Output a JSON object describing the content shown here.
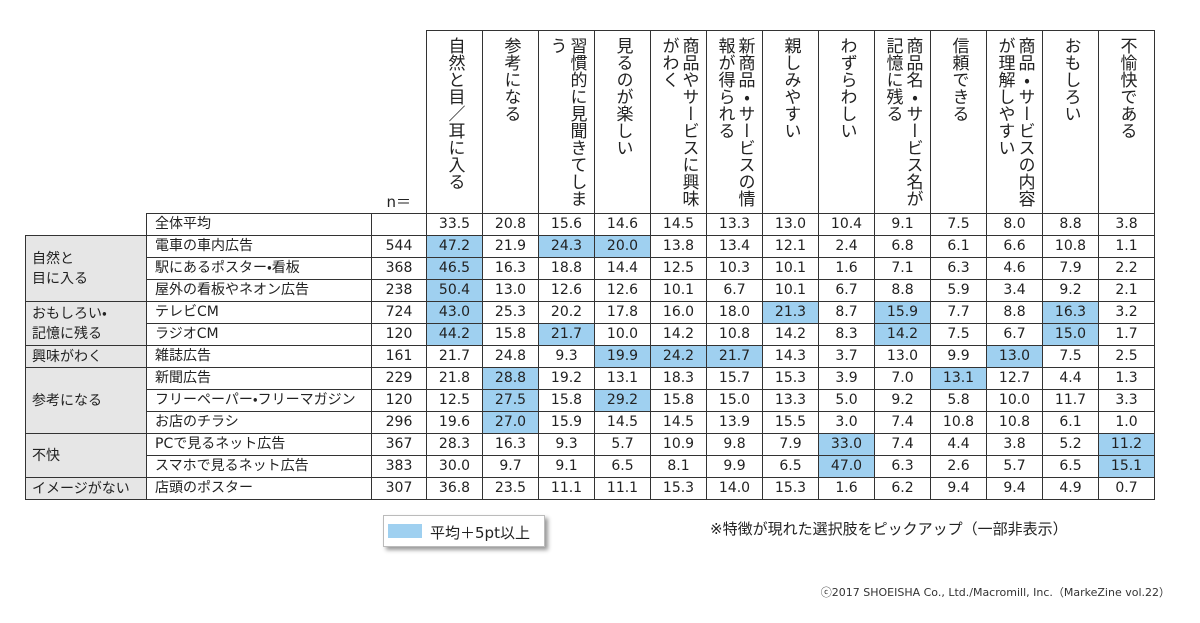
{
  "table": {
    "n_label": "n＝",
    "columns": [
      "自然と目／耳に入る",
      "参考になる",
      "習慣的に見聞きてしまう",
      "見るのが楽しい",
      "商品やサービスに興味がわく",
      "新商品・サービスの情報が得られる",
      "親しみやすい",
      "わずらわしい",
      "商品名・サービス名が記憶に残る",
      "信頼できる",
      "商品・サービスの内容が理解しやすい",
      "おもしろい",
      "不愉快である"
    ],
    "overall": {
      "label": "全体平均",
      "values": [
        "33.5",
        "20.8",
        "15.6",
        "14.6",
        "14.5",
        "13.3",
        "13.0",
        "10.4",
        "9.1",
        "7.5",
        "8.0",
        "8.8",
        "3.8"
      ]
    },
    "highlight_color": "#9fd0f0",
    "groups": [
      {
        "label": "自然と\n目に入る",
        "rows": [
          {
            "label": "電車の車内広告",
            "n": "544",
            "values": [
              "47.2",
              "21.9",
              "24.3",
              "20.0",
              "13.8",
              "13.4",
              "12.1",
              "2.4",
              "6.8",
              "6.1",
              "6.6",
              "10.8",
              "1.1"
            ],
            "highlight": [
              0,
              2,
              3
            ]
          },
          {
            "label": "駅にあるポスター・看板",
            "n": "368",
            "values": [
              "46.5",
              "16.3",
              "18.8",
              "14.4",
              "12.5",
              "10.3",
              "10.1",
              "1.6",
              "7.1",
              "6.3",
              "4.6",
              "7.9",
              "2.2"
            ],
            "highlight": [
              0
            ]
          },
          {
            "label": "屋外の看板やネオン広告",
            "n": "238",
            "values": [
              "50.4",
              "13.0",
              "12.6",
              "12.6",
              "10.1",
              "6.7",
              "10.1",
              "6.7",
              "8.8",
              "5.9",
              "3.4",
              "9.2",
              "2.1"
            ],
            "highlight": [
              0
            ]
          }
        ]
      },
      {
        "label": "おもしろい・\n記憶に残る",
        "rows": [
          {
            "label": "テレビCM",
            "n": "724",
            "values": [
              "43.0",
              "25.3",
              "20.2",
              "17.8",
              "16.0",
              "18.0",
              "21.3",
              "8.7",
              "15.9",
              "7.7",
              "8.8",
              "16.3",
              "3.2"
            ],
            "highlight": [
              0,
              6,
              8,
              11
            ]
          },
          {
            "label": "ラジオCM",
            "n": "120",
            "values": [
              "44.2",
              "15.8",
              "21.7",
              "10.0",
              "14.2",
              "10.8",
              "14.2",
              "8.3",
              "14.2",
              "7.5",
              "6.7",
              "15.0",
              "1.7"
            ],
            "highlight": [
              0,
              2,
              8,
              11
            ]
          }
        ]
      },
      {
        "label": "興味がわく",
        "rows": [
          {
            "label": "雑誌広告",
            "n": "161",
            "values": [
              "21.7",
              "24.8",
              "9.3",
              "19.9",
              "24.2",
              "21.7",
              "14.3",
              "3.7",
              "13.0",
              "9.9",
              "13.0",
              "7.5",
              "2.5"
            ],
            "highlight": [
              3,
              4,
              5,
              10
            ]
          }
        ]
      },
      {
        "label": "参考になる",
        "rows": [
          {
            "label": "新聞広告",
            "n": "229",
            "values": [
              "21.8",
              "28.8",
              "19.2",
              "13.1",
              "18.3",
              "15.7",
              "15.3",
              "3.9",
              "7.0",
              "13.1",
              "12.7",
              "4.4",
              "1.3"
            ],
            "highlight": [
              1,
              9
            ]
          },
          {
            "label": "フリーペーパー・フリーマガジン",
            "n": "120",
            "values": [
              "12.5",
              "27.5",
              "15.8",
              "29.2",
              "15.8",
              "15.0",
              "13.3",
              "5.0",
              "9.2",
              "5.8",
              "10.0",
              "11.7",
              "3.3"
            ],
            "highlight": [
              1,
              3
            ]
          },
          {
            "label": "お店のチラシ",
            "n": "296",
            "values": [
              "19.6",
              "27.0",
              "15.9",
              "14.5",
              "14.5",
              "13.9",
              "15.5",
              "3.0",
              "7.4",
              "10.8",
              "10.8",
              "6.1",
              "1.0"
            ],
            "highlight": [
              1
            ]
          }
        ]
      },
      {
        "label": "不快",
        "rows": [
          {
            "label": "PCで見るネット広告",
            "n": "367",
            "values": [
              "28.3",
              "16.3",
              "9.3",
              "5.7",
              "10.9",
              "9.8",
              "7.9",
              "33.0",
              "7.4",
              "4.4",
              "3.8",
              "5.2",
              "11.2"
            ],
            "highlight": [
              7,
              12
            ]
          },
          {
            "label": "スマホで見るネット広告",
            "n": "383",
            "values": [
              "30.0",
              "9.7",
              "9.1",
              "6.5",
              "8.1",
              "9.9",
              "6.5",
              "47.0",
              "6.3",
              "2.6",
              "5.7",
              "6.5",
              "15.1"
            ],
            "highlight": [
              7,
              12
            ]
          }
        ]
      },
      {
        "label": "イメージがない",
        "rows": [
          {
            "label": "店頭のポスター",
            "n": "307",
            "values": [
              "36.8",
              "23.5",
              "11.1",
              "11.1",
              "15.3",
              "14.0",
              "15.3",
              "1.6",
              "6.2",
              "9.4",
              "9.4",
              "4.9",
              "0.7"
            ],
            "highlight": []
          }
        ]
      }
    ]
  },
  "legend": {
    "label": "平均＋5pt以上"
  },
  "note": "※特徴が現れた選択肢をピックアップ（一部非表示）",
  "copyright": "ⓒ2017 SHOEISHA Co., Ltd./Macromill, Inc.（MarkeZine vol.22）"
}
